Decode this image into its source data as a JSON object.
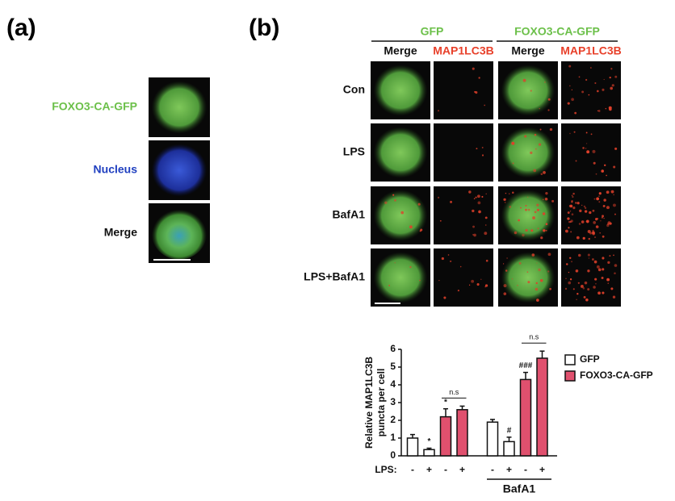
{
  "panel_a": {
    "label": "(a)",
    "rows": [
      "FOXO3-CA-GFP",
      "Nucleus",
      "Merge"
    ]
  },
  "panel_b": {
    "label": "(b)",
    "groups": [
      "GFP",
      "FOXO3-CA-GFP"
    ],
    "columns": [
      "Merge",
      "MAP1LC3B",
      "Merge",
      "MAP1LC3B"
    ],
    "rows": [
      "Con",
      "LPS",
      "BafA1",
      "LPS+BafA1"
    ]
  },
  "chart_data": {
    "type": "bar",
    "ylabel_lines": [
      "Relative MAP1LC3B",
      "puncta per cell"
    ],
    "xlabel": "LPS:",
    "categories": [
      "-",
      "+",
      "-",
      "+",
      "-",
      "+",
      "-",
      "+"
    ],
    "group_label": "BafA1",
    "series": [
      {
        "name": "GFP",
        "color": "#ffffff",
        "values": [
          1.0,
          0.35,
          null,
          null,
          1.9,
          0.8,
          null,
          null
        ],
        "errors": [
          0.2,
          0.08,
          null,
          null,
          0.15,
          0.25,
          null,
          null
        ]
      },
      {
        "name": "FOXO3-CA-GFP",
        "color": "#e0506e",
        "values": [
          null,
          null,
          2.2,
          2.6,
          null,
          null,
          4.3,
          5.5
        ],
        "errors": [
          null,
          null,
          0.45,
          0.2,
          null,
          null,
          0.4,
          0.4
        ]
      }
    ],
    "ylim": [
      0,
      6
    ],
    "yticks": [
      0,
      1,
      2,
      3,
      4,
      5,
      6
    ],
    "annotations": [
      "*",
      "*",
      "#",
      "###",
      "n.s",
      "n.s"
    ],
    "legend": "right"
  }
}
